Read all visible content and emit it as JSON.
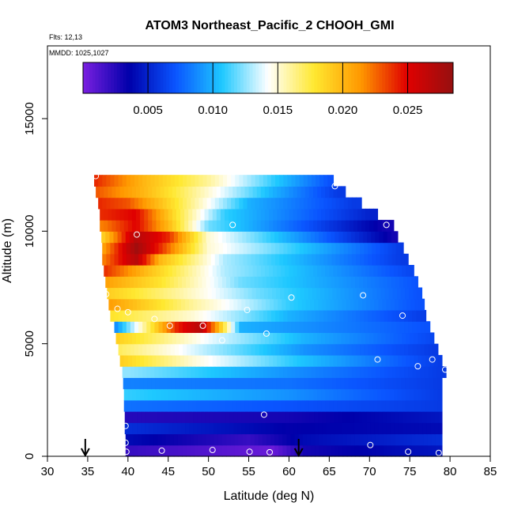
{
  "chart_data": {
    "type": "heatmap",
    "title": "ATOM3 Northeast_Pacific_2 CHOOH_GMI",
    "annotations": [
      "Flts: 12,13",
      "MMDD: 1025,1027"
    ],
    "xlabel": "Latitude (deg N)",
    "ylabel": "Altitude (m)",
    "xlim": [
      30,
      85
    ],
    "ylim": [
      0,
      17500
    ],
    "x_ticks": [
      30,
      35,
      40,
      45,
      50,
      55,
      60,
      65,
      70,
      75,
      80,
      85
    ],
    "x_tick_labels": [
      "30",
      "35",
      "40",
      "45",
      "50",
      "55",
      "60",
      "65",
      "70",
      "75",
      "80",
      "85"
    ],
    "y_ticks": [
      0,
      5000,
      10000,
      15000
    ],
    "y_tick_labels": [
      "0",
      "5000",
      "10000",
      "15000"
    ],
    "colorbar": {
      "min": 0.0,
      "max": 0.0285,
      "ticks": [
        0.005,
        0.01,
        0.015,
        0.02,
        0.025
      ],
      "tick_labels": [
        "0.005",
        "0.010",
        "0.015",
        "0.020",
        "0.025"
      ],
      "colors": [
        "#7a1fe0",
        "#0000aa",
        "#0a55ff",
        "#1ec8ff",
        "#ffffff",
        "#ffe830",
        "#ff9800",
        "#e00000",
        "#961010"
      ]
    },
    "arrows_latitude": [
      34.7,
      61.2
    ],
    "bands": [
      {
        "y": 250,
        "lat_start": 39.7,
        "lat_end": 79,
        "profile": [
          [
            40,
            0.002
          ],
          [
            58,
            0.0005
          ],
          [
            62,
            0.003
          ],
          [
            79,
            0.0045
          ]
        ]
      },
      {
        "y": 750,
        "lat_start": 39.7,
        "lat_end": 79,
        "profile": [
          [
            40,
            0.004
          ],
          [
            55,
            0.002
          ],
          [
            62,
            0.004
          ],
          [
            79,
            0.0055
          ]
        ]
      },
      {
        "y": 1250,
        "lat_start": 39.6,
        "lat_end": 79,
        "profile": [
          [
            40,
            0.0055
          ],
          [
            60,
            0.0035
          ],
          [
            79,
            0.004
          ]
        ]
      },
      {
        "y": 1750,
        "lat_start": 39.6,
        "lat_end": 79,
        "profile": [
          [
            40,
            0.0025
          ],
          [
            60,
            0.003
          ],
          [
            79,
            0.0045
          ]
        ]
      },
      {
        "y": 2250,
        "lat_start": 39.5,
        "lat_end": 79,
        "profile": [
          [
            40,
            0.008
          ],
          [
            60,
            0.007
          ],
          [
            79,
            0.006
          ]
        ]
      },
      {
        "y": 2750,
        "lat_start": 39.5,
        "lat_end": 79,
        "profile": [
          [
            40,
            0.011
          ],
          [
            60,
            0.009
          ],
          [
            79,
            0.006
          ]
        ]
      },
      {
        "y": 3250,
        "lat_start": 39.4,
        "lat_end": 79,
        "profile": [
          [
            40,
            0.0085
          ],
          [
            60,
            0.008
          ],
          [
            79,
            0.006
          ]
        ]
      },
      {
        "y": 3750,
        "lat_start": 39.3,
        "lat_end": 79.5,
        "profile": [
          [
            40,
            0.0125
          ],
          [
            60,
            0.009
          ],
          [
            79,
            0.006
          ]
        ]
      },
      {
        "y": 4250,
        "lat_start": 39.0,
        "lat_end": 79.0,
        "profile": [
          [
            39,
            0.019
          ],
          [
            48,
            0.015
          ],
          [
            60,
            0.011
          ],
          [
            79,
            0.006
          ]
        ]
      },
      {
        "y": 4750,
        "lat_start": 38.8,
        "lat_end": 78.5,
        "profile": [
          [
            39,
            0.017
          ],
          [
            50,
            0.013
          ],
          [
            62,
            0.009
          ],
          [
            78,
            0.006
          ]
        ]
      },
      {
        "y": 5250,
        "lat_start": 38.5,
        "lat_end": 78.0,
        "profile": [
          [
            38.5,
            0.019
          ],
          [
            50,
            0.014
          ],
          [
            62,
            0.01
          ],
          [
            78,
            0.0065
          ]
        ]
      },
      {
        "y": 5750,
        "lat_start": 38.3,
        "lat_end": 77.5,
        "profile": [
          [
            38.3,
            0.0085
          ],
          [
            46,
            0.024
          ],
          [
            49,
            0.027
          ],
          [
            51,
            0.021
          ],
          [
            54,
            0.01
          ],
          [
            77,
            0.007
          ]
        ]
      },
      {
        "y": 6250,
        "lat_start": 37.8,
        "lat_end": 77.0,
        "profile": [
          [
            38,
            0.018
          ],
          [
            48,
            0.015
          ],
          [
            60,
            0.01
          ],
          [
            77,
            0.006
          ]
        ]
      },
      {
        "y": 6750,
        "lat_start": 37.6,
        "lat_end": 76.8,
        "profile": [
          [
            38,
            0.021
          ],
          [
            48,
            0.016
          ],
          [
            60,
            0.011
          ],
          [
            76,
            0.007
          ]
        ]
      },
      {
        "y": 7250,
        "lat_start": 37.4,
        "lat_end": 76.5,
        "profile": [
          [
            37.5,
            0.019
          ],
          [
            46,
            0.016
          ],
          [
            56,
            0.012
          ],
          [
            76,
            0.007
          ]
        ]
      },
      {
        "y": 7750,
        "lat_start": 37.2,
        "lat_end": 76.0,
        "profile": [
          [
            37.3,
            0.021
          ],
          [
            44,
            0.018
          ],
          [
            54,
            0.012
          ],
          [
            76,
            0.007
          ]
        ]
      },
      {
        "y": 8250,
        "lat_start": 37.0,
        "lat_end": 75.5,
        "profile": [
          [
            37,
            0.024
          ],
          [
            42,
            0.02
          ],
          [
            52,
            0.013
          ],
          [
            75,
            0.0065
          ]
        ]
      },
      {
        "y": 8750,
        "lat_start": 36.8,
        "lat_end": 74.8,
        "profile": [
          [
            37,
            0.022
          ],
          [
            41,
            0.027
          ],
          [
            44,
            0.02
          ],
          [
            52,
            0.013
          ],
          [
            74,
            0.006
          ]
        ]
      },
      {
        "y": 9250,
        "lat_start": 36.8,
        "lat_end": 74.2,
        "profile": [
          [
            37,
            0.021
          ],
          [
            41,
            0.028
          ],
          [
            44,
            0.024
          ],
          [
            50,
            0.015
          ],
          [
            74,
            0.006
          ]
        ]
      },
      {
        "y": 9750,
        "lat_start": 36.7,
        "lat_end": 73.5,
        "profile": [
          [
            37,
            0.019
          ],
          [
            41,
            0.027
          ],
          [
            45,
            0.024
          ],
          [
            50,
            0.015
          ],
          [
            73,
            0.003
          ]
        ]
      },
      {
        "y": 10250,
        "lat_start": 36.5,
        "lat_end": 73.0,
        "profile": [
          [
            37,
            0.022
          ],
          [
            41,
            0.025
          ],
          [
            45,
            0.02
          ],
          [
            50,
            0.012
          ],
          [
            72,
            0.003
          ]
        ]
      },
      {
        "y": 10750,
        "lat_start": 36.5,
        "lat_end": 71.0,
        "profile": [
          [
            37,
            0.024
          ],
          [
            41,
            0.025
          ],
          [
            46,
            0.018
          ],
          [
            52,
            0.011
          ],
          [
            70,
            0.005
          ]
        ]
      },
      {
        "y": 11250,
        "lat_start": 36.3,
        "lat_end": 69.0,
        "profile": [
          [
            36.5,
            0.024
          ],
          [
            40,
            0.023
          ],
          [
            47,
            0.017
          ],
          [
            55,
            0.01
          ],
          [
            68,
            0.006
          ]
        ]
      },
      {
        "y": 11750,
        "lat_start": 36.0,
        "lat_end": 67.0,
        "profile": [
          [
            36,
            0.023
          ],
          [
            42,
            0.02
          ],
          [
            50,
            0.015
          ],
          [
            58,
            0.01
          ],
          [
            66,
            0.006
          ]
        ]
      },
      {
        "y": 12250,
        "lat_start": 35.8,
        "lat_end": 65.5,
        "profile": [
          [
            36,
            0.024
          ],
          [
            42,
            0.02
          ],
          [
            50,
            0.016
          ],
          [
            58,
            0.011
          ],
          [
            65,
            0.007
          ]
        ]
      }
    ],
    "samples": [
      {
        "lat": 36.0,
        "alt": 12450
      },
      {
        "lat": 65.7,
        "alt": 12000
      },
      {
        "lat": 41.1,
        "alt": 9850
      },
      {
        "lat": 53.0,
        "alt": 10280
      },
      {
        "lat": 72.1,
        "alt": 10280
      },
      {
        "lat": 37.3,
        "alt": 7200
      },
      {
        "lat": 60.3,
        "alt": 7050
      },
      {
        "lat": 69.2,
        "alt": 7150
      },
      {
        "lat": 38.7,
        "alt": 6550
      },
      {
        "lat": 40.0,
        "alt": 6400
      },
      {
        "lat": 43.3,
        "alt": 6100
      },
      {
        "lat": 54.8,
        "alt": 6500
      },
      {
        "lat": 74.1,
        "alt": 6250
      },
      {
        "lat": 45.2,
        "alt": 5800
      },
      {
        "lat": 49.3,
        "alt": 5800
      },
      {
        "lat": 51.7,
        "alt": 5150
      },
      {
        "lat": 57.2,
        "alt": 5450
      },
      {
        "lat": 38.3,
        "alt": 4550
      },
      {
        "lat": 71.0,
        "alt": 4300
      },
      {
        "lat": 76.0,
        "alt": 4000
      },
      {
        "lat": 77.8,
        "alt": 4300
      },
      {
        "lat": 79.4,
        "alt": 3850
      },
      {
        "lat": 56.9,
        "alt": 1850
      },
      {
        "lat": 39.7,
        "alt": 1350
      },
      {
        "lat": 39.7,
        "alt": 600
      },
      {
        "lat": 70.1,
        "alt": 500
      },
      {
        "lat": 44.2,
        "alt": 250
      },
      {
        "lat": 50.5,
        "alt": 280
      },
      {
        "lat": 55.1,
        "alt": 200
      },
      {
        "lat": 57.6,
        "alt": 180
      },
      {
        "lat": 39.8,
        "alt": 200
      },
      {
        "lat": 74.8,
        "alt": 200
      },
      {
        "lat": 78.6,
        "alt": 150
      }
    ]
  }
}
